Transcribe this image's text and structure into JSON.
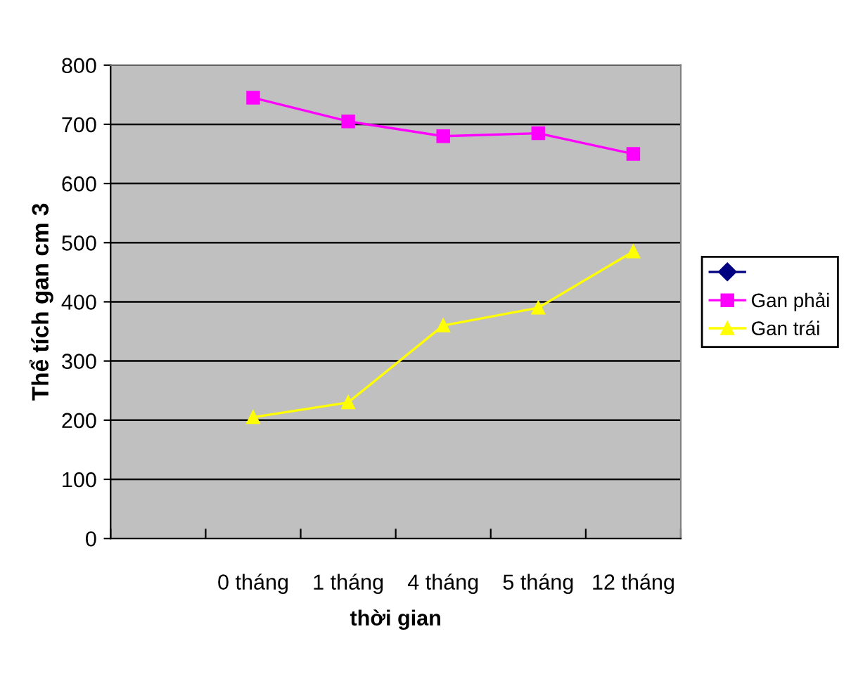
{
  "chart_data": {
    "type": "line",
    "xlabel": "thời gian",
    "ylabel": "Thể tích gan cm 3",
    "categories": [
      null,
      "0 tháng",
      "1 tháng",
      "4 tháng",
      "5 tháng",
      "12 tháng"
    ],
    "series": [
      {
        "color": "#000080",
        "marker": "diamond",
        "values": [
          null,
          null,
          null,
          null,
          null,
          null
        ]
      },
      {
        "name": "Gan phải",
        "color": "#ff00ff",
        "marker": "square",
        "values": [
          null,
          745,
          705,
          680,
          685,
          650
        ]
      },
      {
        "name": "Gan trái",
        "color": "#ffff00",
        "marker": "triangle",
        "values": [
          null,
          205,
          230,
          360,
          390,
          485
        ]
      }
    ],
    "ylim": [
      0,
      800
    ],
    "yticks": [
      0,
      100,
      200,
      300,
      400,
      500,
      600,
      700,
      800
    ],
    "grid": "y",
    "legend": "right"
  }
}
